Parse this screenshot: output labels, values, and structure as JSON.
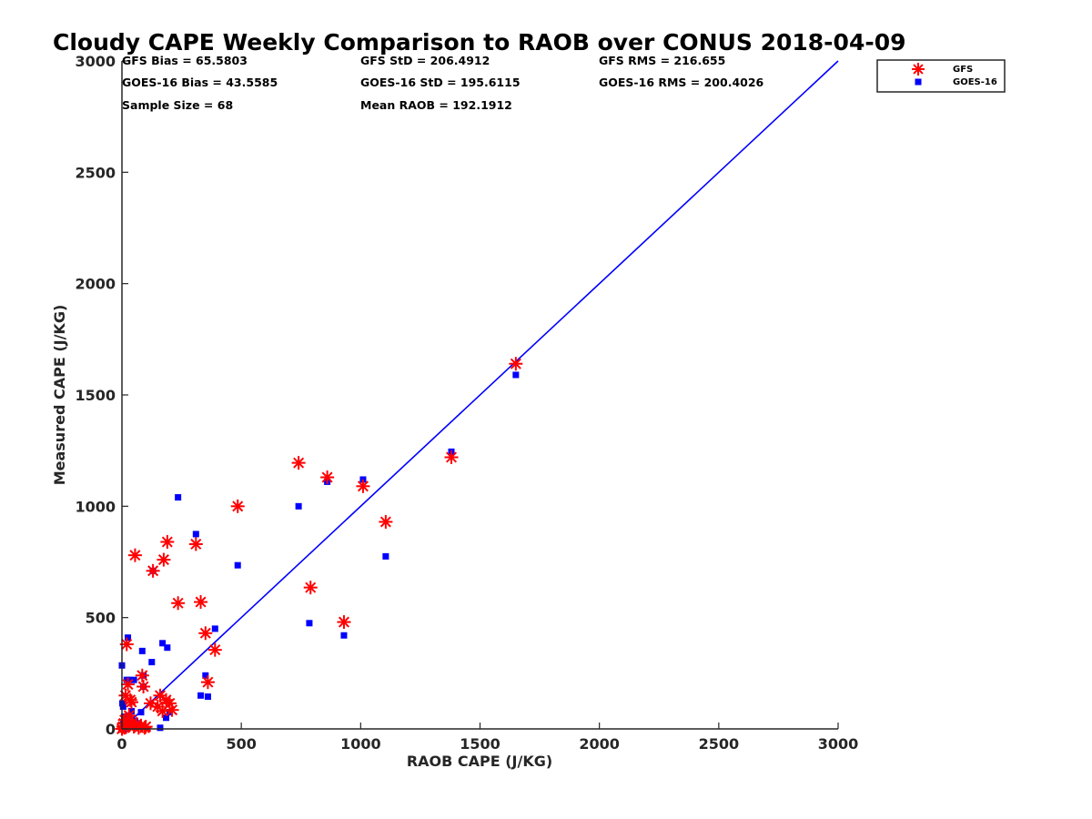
{
  "chart_data": {
    "type": "scatter",
    "title": "Cloudy CAPE Weekly Comparison to RAOB over CONUS 2018-04-09",
    "xlabel": "RAOB CAPE (J/KG)",
    "ylabel": "Measured CAPE (J/KG)",
    "xlim": [
      0,
      3000
    ],
    "ylim": [
      0,
      3000
    ],
    "xticks": [
      0,
      500,
      1000,
      1500,
      2000,
      2500,
      3000
    ],
    "yticks": [
      0,
      500,
      1000,
      1500,
      2000,
      2500,
      3000
    ],
    "grid": false,
    "legend_position": "top-right, outside",
    "reference_line": {
      "name": "1:1 line",
      "color": "#0000ff",
      "x": [
        0,
        3000
      ],
      "y": [
        0,
        3000
      ]
    },
    "stats": [
      "GFS Bias = 65.5803",
      "GFS StD = 206.4912",
      "GFS RMS = 216.655",
      "GOES-16 Bias = 43.5585",
      "GOES-16 StD = 195.6115",
      "GOES-16 RMS = 200.4026",
      "Sample Size = 68",
      "Mean RAOB = 192.1912"
    ],
    "series": [
      {
        "name": "GFS",
        "marker": "asterisk",
        "color": "#ff0000",
        "points": [
          [
            0,
            0
          ],
          [
            5,
            10
          ],
          [
            8,
            25
          ],
          [
            10,
            5
          ],
          [
            12,
            40
          ],
          [
            15,
            150
          ],
          [
            20,
            380
          ],
          [
            25,
            200
          ],
          [
            28,
            15
          ],
          [
            30,
            60
          ],
          [
            35,
            130
          ],
          [
            40,
            120
          ],
          [
            45,
            30
          ],
          [
            50,
            10
          ],
          [
            55,
            780
          ],
          [
            60,
            20
          ],
          [
            70,
            5
          ],
          [
            80,
            15
          ],
          [
            85,
            240
          ],
          [
            90,
            190
          ],
          [
            95,
            5
          ],
          [
            100,
            10
          ],
          [
            120,
            115
          ],
          [
            130,
            710
          ],
          [
            150,
            100
          ],
          [
            160,
            150
          ],
          [
            170,
            80
          ],
          [
            175,
            760
          ],
          [
            185,
            130
          ],
          [
            190,
            840
          ],
          [
            200,
            115
          ],
          [
            210,
            85
          ],
          [
            235,
            565
          ],
          [
            310,
            830
          ],
          [
            330,
            570
          ],
          [
            350,
            430
          ],
          [
            360,
            210
          ],
          [
            390,
            355
          ],
          [
            485,
            1000
          ],
          [
            740,
            1195
          ],
          [
            790,
            635
          ],
          [
            860,
            1130
          ],
          [
            930,
            480
          ],
          [
            1010,
            1090
          ],
          [
            1105,
            930
          ],
          [
            1380,
            1220
          ],
          [
            1650,
            1640
          ]
        ]
      },
      {
        "name": "GOES-16",
        "marker": "square",
        "color": "#0000ff",
        "points": [
          [
            0,
            285
          ],
          [
            2,
            115
          ],
          [
            5,
            100
          ],
          [
            5,
            20
          ],
          [
            8,
            10
          ],
          [
            10,
            55
          ],
          [
            12,
            0
          ],
          [
            15,
            5
          ],
          [
            15,
            30
          ],
          [
            20,
            220
          ],
          [
            25,
            410
          ],
          [
            30,
            220
          ],
          [
            30,
            60
          ],
          [
            40,
            80
          ],
          [
            45,
            15
          ],
          [
            50,
            220
          ],
          [
            55,
            35
          ],
          [
            60,
            10
          ],
          [
            70,
            25
          ],
          [
            80,
            75
          ],
          [
            85,
            350
          ],
          [
            90,
            240
          ],
          [
            90,
            190
          ],
          [
            125,
            300
          ],
          [
            130,
            710
          ],
          [
            160,
            5
          ],
          [
            170,
            385
          ],
          [
            185,
            50
          ],
          [
            190,
            365
          ],
          [
            200,
            75
          ],
          [
            235,
            1040
          ],
          [
            310,
            875
          ],
          [
            330,
            150
          ],
          [
            350,
            240
          ],
          [
            360,
            145
          ],
          [
            390,
            450
          ],
          [
            485,
            735
          ],
          [
            740,
            1000
          ],
          [
            785,
            475
          ],
          [
            860,
            1110
          ],
          [
            930,
            420
          ],
          [
            1010,
            1120
          ],
          [
            1105,
            775
          ],
          [
            1380,
            1245
          ],
          [
            1650,
            1590
          ]
        ]
      }
    ]
  }
}
